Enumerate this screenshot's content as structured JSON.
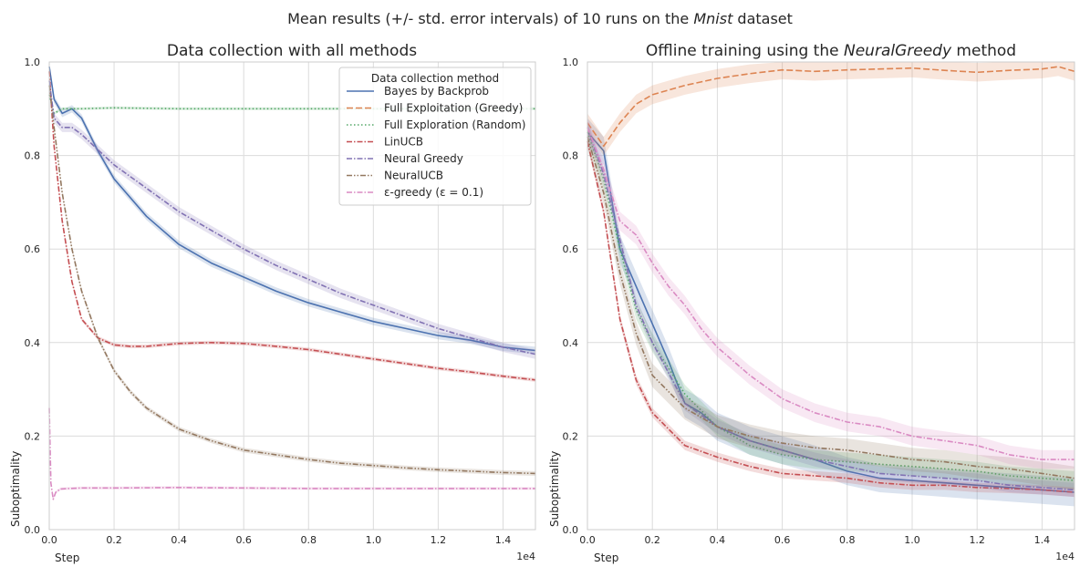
{
  "figure": {
    "suptitle_prefix": "Mean results (+/- std. error intervals) of 10 runs on the ",
    "suptitle_italic": "Mnist",
    "suptitle_suffix": " dataset"
  },
  "chart_data": [
    {
      "type": "line",
      "title": "Data collection with all methods",
      "xlabel": "Step",
      "ylabel": "Suboptimality",
      "x_offset_label": "1e4",
      "xlim": [
        0,
        15000
      ],
      "ylim": [
        0,
        1.0
      ],
      "grid": true,
      "x_ticks": [
        0,
        2000,
        4000,
        6000,
        8000,
        10000,
        12000,
        14000
      ],
      "x_tick_labels": [
        "0.0",
        "0.2",
        "0.4",
        "0.6",
        "0.8",
        "1.0",
        "1.2",
        "1.4"
      ],
      "y_ticks": [
        0,
        0.2,
        0.4,
        0.6,
        0.8,
        1.0
      ],
      "y_tick_labels": [
        "0.0",
        "0.2",
        "0.4",
        "0.6",
        "0.8",
        "1.0"
      ],
      "legend": {
        "title": "Data collection method",
        "position": "top-right"
      },
      "series": [
        {
          "name": "Bayes by Backprob",
          "color": "#4c72b0",
          "dash": "solid",
          "band": 0.008,
          "x": [
            0,
            150,
            400,
            700,
            1000,
            1500,
            2000,
            3000,
            4000,
            5000,
            6000,
            7000,
            8000,
            9000,
            10000,
            11000,
            12000,
            13000,
            14000,
            15000
          ],
          "y": [
            0.99,
            0.92,
            0.89,
            0.9,
            0.88,
            0.81,
            0.75,
            0.67,
            0.61,
            0.57,
            0.54,
            0.51,
            0.485,
            0.465,
            0.445,
            0.43,
            0.415,
            0.405,
            0.39,
            0.383
          ]
        },
        {
          "name": "Full Exploitation (Greedy)",
          "color": "#dd8452",
          "dash": "dashed",
          "band": 0,
          "x": [],
          "y": []
        },
        {
          "name": "Full Exploration (Random)",
          "color": "#55a868",
          "dash": "dotted",
          "band": 0.003,
          "x": [
            0,
            150,
            400,
            1000,
            2000,
            4000,
            6000,
            8000,
            10000,
            12000,
            14000,
            15000
          ],
          "y": [
            0.93,
            0.89,
            0.9,
            0.9,
            0.902,
            0.9,
            0.9,
            0.9,
            0.9,
            0.9,
            0.9,
            0.9
          ]
        },
        {
          "name": "LinUCB",
          "color": "#c44e52",
          "dash": "dashdot",
          "band": 0.004,
          "x": [
            0,
            150,
            400,
            700,
            1000,
            1500,
            2000,
            2500,
            3000,
            4000,
            5000,
            6000,
            7000,
            8000,
            9000,
            10000,
            11000,
            12000,
            13000,
            14000,
            15000
          ],
          "y": [
            0.98,
            0.82,
            0.66,
            0.53,
            0.45,
            0.41,
            0.395,
            0.392,
            0.392,
            0.398,
            0.4,
            0.398,
            0.392,
            0.385,
            0.375,
            0.365,
            0.355,
            0.345,
            0.337,
            0.328,
            0.32
          ]
        },
        {
          "name": "Neural Greedy",
          "color": "#8172b3",
          "dash": "dashdot",
          "band": 0.01,
          "x": [
            0,
            150,
            400,
            700,
            1000,
            2000,
            3000,
            4000,
            5000,
            6000,
            7000,
            8000,
            9000,
            10000,
            11000,
            12000,
            13000,
            14000,
            15000
          ],
          "y": [
            0.96,
            0.88,
            0.86,
            0.86,
            0.845,
            0.78,
            0.73,
            0.68,
            0.64,
            0.6,
            0.565,
            0.535,
            0.505,
            0.48,
            0.455,
            0.43,
            0.41,
            0.39,
            0.375
          ]
        },
        {
          "name": "NeuralUCB",
          "color": "#937860",
          "dash": "dashdotdot",
          "band": 0.005,
          "x": [
            0,
            150,
            400,
            700,
            1000,
            1500,
            2000,
            2500,
            3000,
            4000,
            5000,
            6000,
            7000,
            8000,
            9000,
            10000,
            11000,
            12000,
            13000,
            14000,
            15000
          ],
          "y": [
            0.95,
            0.86,
            0.72,
            0.6,
            0.51,
            0.41,
            0.34,
            0.295,
            0.26,
            0.215,
            0.19,
            0.17,
            0.16,
            0.15,
            0.142,
            0.137,
            0.132,
            0.128,
            0.125,
            0.122,
            0.12
          ]
        },
        {
          "name": "ε-greedy (ε = 0.1)",
          "color": "#da8bc3",
          "dash": "dashdot",
          "band": 0.003,
          "x": [
            0,
            50,
            120,
            200,
            350,
            600,
            1000,
            2000,
            4000,
            6000,
            8000,
            10000,
            12000,
            14000,
            15000
          ],
          "y": [
            0.26,
            0.1,
            0.065,
            0.08,
            0.087,
            0.088,
            0.089,
            0.089,
            0.09,
            0.089,
            0.088,
            0.088,
            0.088,
            0.088,
            0.088
          ]
        }
      ]
    },
    {
      "type": "line",
      "title_prefix": "Offline training using the ",
      "title_italic": "NeuralGreedy",
      "title_suffix": " method",
      "xlabel": "Step",
      "ylabel": "Suboptimality",
      "x_offset_label": "1e4",
      "xlim": [
        0,
        15000
      ],
      "ylim": [
        0,
        1.0
      ],
      "grid": true,
      "x_ticks": [
        0,
        2000,
        4000,
        6000,
        8000,
        10000,
        12000,
        14000
      ],
      "x_tick_labels": [
        "0.0",
        "0.2",
        "0.4",
        "0.6",
        "0.8",
        "1.0",
        "1.2",
        "1.4"
      ],
      "y_ticks": [
        0,
        0.2,
        0.4,
        0.6,
        0.8,
        1.0
      ],
      "y_tick_labels": [
        "0.0",
        "0.2",
        "0.4",
        "0.6",
        "0.8",
        "1.0"
      ],
      "series": [
        {
          "name": "Bayes by Backprob",
          "color": "#4c72b0",
          "dash": "solid",
          "band": 0.03,
          "x": [
            0,
            500,
            1000,
            1500,
            2000,
            2500,
            3000,
            3500,
            4000,
            5000,
            6000,
            7000,
            8000,
            9000,
            10000,
            11000,
            12000,
            13000,
            14000,
            15000
          ],
          "y": [
            0.85,
            0.81,
            0.6,
            0.52,
            0.44,
            0.36,
            0.27,
            0.25,
            0.22,
            0.19,
            0.17,
            0.15,
            0.125,
            0.11,
            0.105,
            0.1,
            0.095,
            0.09,
            0.085,
            0.08
          ]
        },
        {
          "name": "Full Exploitation (Greedy)",
          "color": "#dd8452",
          "dash": "dashed",
          "band": 0.02,
          "x": [
            0,
            500,
            1000,
            1500,
            2000,
            3000,
            4000,
            5000,
            6000,
            7000,
            8000,
            9000,
            10000,
            11000,
            12000,
            13000,
            14000,
            14500,
            15000
          ],
          "y": [
            0.87,
            0.82,
            0.87,
            0.91,
            0.93,
            0.95,
            0.965,
            0.975,
            0.983,
            0.98,
            0.983,
            0.985,
            0.987,
            0.982,
            0.978,
            0.982,
            0.985,
            0.99,
            0.98
          ]
        },
        {
          "name": "Full Exploration (Random)",
          "color": "#55a868",
          "dash": "dotted",
          "band": 0.02,
          "x": [
            0,
            500,
            1000,
            1500,
            2000,
            3000,
            4000,
            5000,
            6000,
            7000,
            8000,
            9000,
            10000,
            11000,
            12000,
            13000,
            14000,
            15000
          ],
          "y": [
            0.85,
            0.75,
            0.6,
            0.47,
            0.4,
            0.29,
            0.22,
            0.18,
            0.16,
            0.15,
            0.145,
            0.14,
            0.135,
            0.13,
            0.125,
            0.115,
            0.11,
            0.105
          ]
        },
        {
          "name": "LinUCB",
          "color": "#c44e52",
          "dash": "dashdot",
          "band": 0.01,
          "x": [
            0,
            500,
            1000,
            1500,
            2000,
            3000,
            4000,
            5000,
            6000,
            7000,
            8000,
            9000,
            10000,
            11000,
            12000,
            13000,
            14000,
            15000
          ],
          "y": [
            0.83,
            0.68,
            0.45,
            0.32,
            0.25,
            0.18,
            0.155,
            0.135,
            0.12,
            0.115,
            0.11,
            0.1,
            0.095,
            0.095,
            0.09,
            0.088,
            0.085,
            0.08
          ]
        },
        {
          "name": "Neural Greedy",
          "color": "#8172b3",
          "dash": "dashdot",
          "band": 0.015,
          "x": [
            0,
            500,
            1000,
            1500,
            2000,
            3000,
            4000,
            5000,
            6000,
            7000,
            8000,
            9000,
            10000,
            11000,
            12000,
            13000,
            14000,
            15000
          ],
          "y": [
            0.86,
            0.76,
            0.62,
            0.48,
            0.4,
            0.27,
            0.22,
            0.19,
            0.17,
            0.15,
            0.135,
            0.12,
            0.115,
            0.11,
            0.105,
            0.095,
            0.09,
            0.085
          ]
        },
        {
          "name": "NeuralUCB",
          "color": "#937860",
          "dash": "dashdotdot",
          "band": 0.025,
          "x": [
            0,
            500,
            1000,
            1500,
            2000,
            3000,
            4000,
            5000,
            6000,
            7000,
            8000,
            9000,
            10000,
            11000,
            12000,
            13000,
            14000,
            15000
          ],
          "y": [
            0.84,
            0.72,
            0.55,
            0.42,
            0.33,
            0.26,
            0.22,
            0.2,
            0.185,
            0.175,
            0.17,
            0.16,
            0.15,
            0.145,
            0.135,
            0.13,
            0.12,
            0.11
          ]
        },
        {
          "name": "ε-greedy (ε = 0.1)",
          "color": "#da8bc3",
          "dash": "dashdot",
          "band": 0.02,
          "x": [
            0,
            500,
            1000,
            1500,
            2000,
            2500,
            3000,
            3500,
            4000,
            5000,
            6000,
            7000,
            8000,
            9000,
            10000,
            11000,
            12000,
            13000,
            14000,
            15000
          ],
          "y": [
            0.86,
            0.77,
            0.66,
            0.63,
            0.57,
            0.52,
            0.48,
            0.43,
            0.39,
            0.33,
            0.28,
            0.25,
            0.23,
            0.22,
            0.2,
            0.19,
            0.18,
            0.16,
            0.15,
            0.15
          ]
        }
      ]
    }
  ]
}
